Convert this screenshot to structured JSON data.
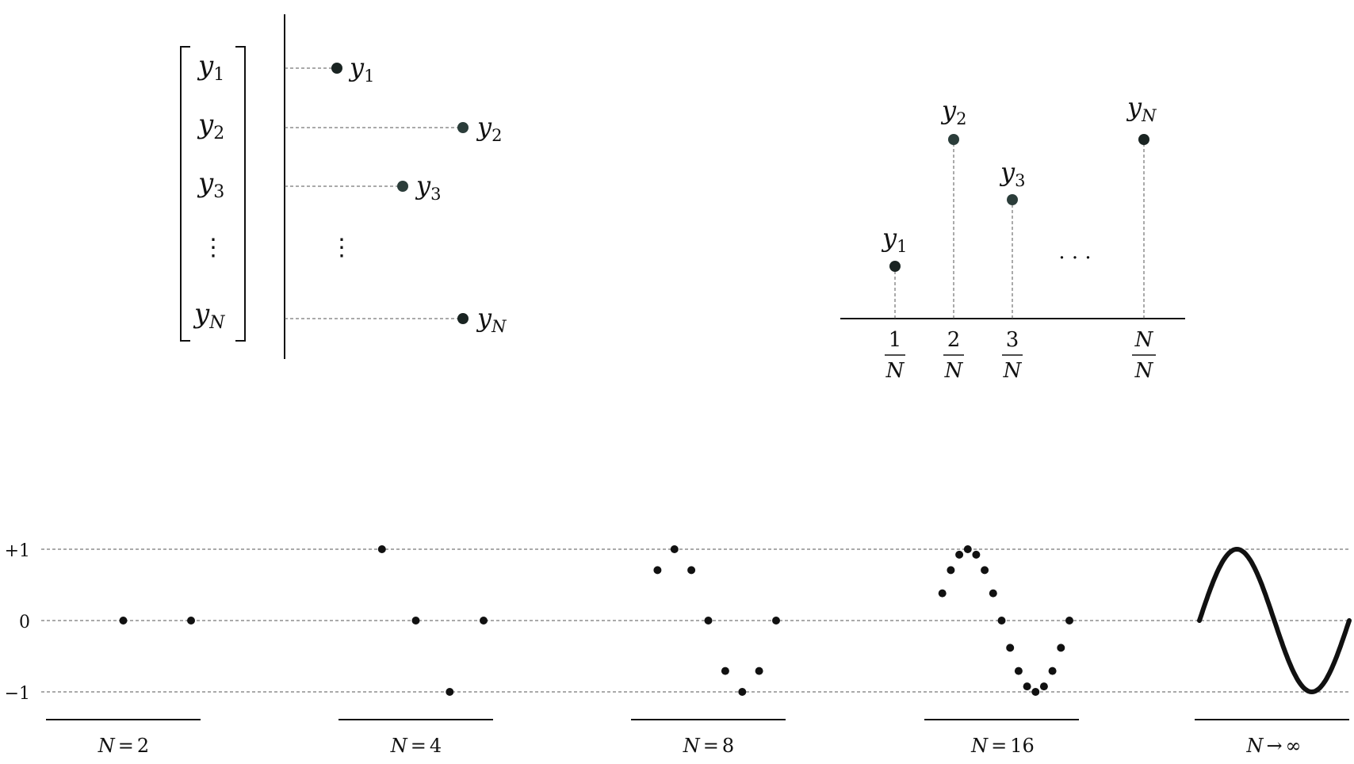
{
  "vector_panel": {
    "entries": [
      {
        "name": "y",
        "sub": "1",
        "value": 0.27
      },
      {
        "name": "y",
        "sub": "2",
        "value": 0.9
      },
      {
        "name": "y",
        "sub": "3",
        "value": 0.59
      },
      {
        "name": "y",
        "sub": "N",
        "value": 0.9
      }
    ],
    "ellipsis": "⋮"
  },
  "stem_panel": {
    "points": [
      {
        "name": "y",
        "sub": "1",
        "num": "1",
        "den": "N",
        "value": 0.33
      },
      {
        "name": "y",
        "sub": "2",
        "num": "2",
        "den": "N",
        "value": 1.0
      },
      {
        "name": "y",
        "sub": "3",
        "num": "3",
        "den": "N",
        "value": 0.69
      },
      {
        "name": "y",
        "sub": "N",
        "num": "N",
        "den": "N",
        "value": 1.0
      }
    ],
    "ellipsis": "· · ·"
  },
  "sampling": {
    "y_ticks": [
      "+1",
      "0",
      "−1"
    ],
    "panels": [
      {
        "n": 2,
        "label_lhs": "N",
        "label_op": "=",
        "label_rhs": "2"
      },
      {
        "n": 4,
        "label_lhs": "N",
        "label_op": "=",
        "label_rhs": "4"
      },
      {
        "n": 8,
        "label_lhs": "N",
        "label_op": "=",
        "label_rhs": "8"
      },
      {
        "n": 16,
        "label_lhs": "N",
        "label_op": "=",
        "label_rhs": "16"
      },
      {
        "n": "continuous",
        "label_lhs": "N",
        "label_op": "→",
        "label_rhs": "∞"
      }
    ]
  },
  "colors": {
    "ink": "#111111",
    "dash": "#555555",
    "point_dark": "#1a2422"
  }
}
